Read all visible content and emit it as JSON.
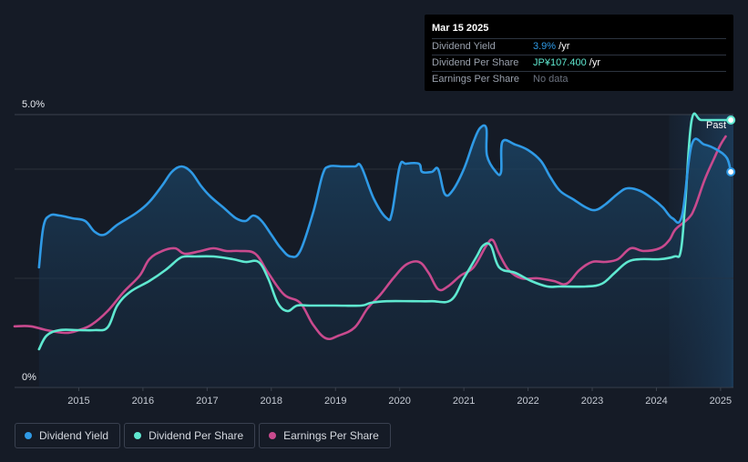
{
  "tooltip": {
    "date": "Mar 15 2025",
    "rows": [
      {
        "label": "Dividend Yield",
        "value": "3.9%",
        "suffix": " /yr"
      },
      {
        "label": "Dividend Per Share",
        "value": "JP¥107.400",
        "suffix": " /yr"
      },
      {
        "label": "Earnings Per Share",
        "value": "No data",
        "suffix": ""
      }
    ]
  },
  "legend": [
    {
      "label": "Dividend Yield",
      "color": "#2f9ae6"
    },
    {
      "label": "Dividend Per Share",
      "color": "#5fe8d0"
    },
    {
      "label": "Earnings Per Share",
      "color": "#c94a8e"
    }
  ],
  "chart_data": {
    "type": "line",
    "y_axis_labels": [
      "5.0%",
      "0%"
    ],
    "ylim": [
      0,
      5.0
    ],
    "x_ticks": [
      "2015",
      "2016",
      "2017",
      "2018",
      "2019",
      "2020",
      "2021",
      "2022",
      "2023",
      "2024",
      "2025"
    ],
    "xlim": [
      2014.0,
      2025.2
    ],
    "grid": true,
    "past_label": "Past",
    "past_region_start": 2024.2,
    "series": [
      {
        "name": "Dividend Yield",
        "color": "#2f9ae6",
        "unit": "%",
        "points": [
          [
            2014.38,
            2.2
          ],
          [
            2014.45,
            2.95
          ],
          [
            2014.55,
            3.15
          ],
          [
            2014.7,
            3.15
          ],
          [
            2014.9,
            3.1
          ],
          [
            2015.1,
            3.05
          ],
          [
            2015.25,
            2.85
          ],
          [
            2015.4,
            2.8
          ],
          [
            2015.6,
            2.98
          ],
          [
            2015.9,
            3.2
          ],
          [
            2016.1,
            3.4
          ],
          [
            2016.3,
            3.7
          ],
          [
            2016.45,
            3.95
          ],
          [
            2016.6,
            4.05
          ],
          [
            2016.75,
            3.95
          ],
          [
            2016.9,
            3.7
          ],
          [
            2017.05,
            3.5
          ],
          [
            2017.25,
            3.3
          ],
          [
            2017.45,
            3.1
          ],
          [
            2017.6,
            3.05
          ],
          [
            2017.72,
            3.15
          ],
          [
            2017.85,
            3.05
          ],
          [
            2018.0,
            2.8
          ],
          [
            2018.15,
            2.55
          ],
          [
            2018.3,
            2.4
          ],
          [
            2018.45,
            2.5
          ],
          [
            2018.65,
            3.2
          ],
          [
            2018.8,
            3.9
          ],
          [
            2018.9,
            4.05
          ],
          [
            2019.1,
            4.05
          ],
          [
            2019.3,
            4.05
          ],
          [
            2019.4,
            4.05
          ],
          [
            2019.6,
            3.45
          ],
          [
            2019.8,
            3.1
          ],
          [
            2019.88,
            3.2
          ],
          [
            2020.0,
            4.05
          ],
          [
            2020.1,
            4.1
          ],
          [
            2020.3,
            4.1
          ],
          [
            2020.35,
            3.95
          ],
          [
            2020.5,
            3.95
          ],
          [
            2020.6,
            4.0
          ],
          [
            2020.7,
            3.55
          ],
          [
            2020.82,
            3.6
          ],
          [
            2021.0,
            4.0
          ],
          [
            2021.15,
            4.5
          ],
          [
            2021.25,
            4.75
          ],
          [
            2021.35,
            4.75
          ],
          [
            2021.36,
            4.25
          ],
          [
            2021.5,
            3.95
          ],
          [
            2021.58,
            3.95
          ],
          [
            2021.6,
            4.5
          ],
          [
            2021.8,
            4.45
          ],
          [
            2022.0,
            4.35
          ],
          [
            2022.2,
            4.15
          ],
          [
            2022.35,
            3.85
          ],
          [
            2022.5,
            3.6
          ],
          [
            2022.7,
            3.45
          ],
          [
            2022.9,
            3.3
          ],
          [
            2023.05,
            3.25
          ],
          [
            2023.2,
            3.35
          ],
          [
            2023.4,
            3.55
          ],
          [
            2023.55,
            3.65
          ],
          [
            2023.75,
            3.6
          ],
          [
            2023.95,
            3.45
          ],
          [
            2024.1,
            3.3
          ],
          [
            2024.25,
            3.1
          ],
          [
            2024.4,
            3.15
          ],
          [
            2024.55,
            4.45
          ],
          [
            2024.75,
            4.45
          ],
          [
            2024.95,
            4.35
          ],
          [
            2025.1,
            4.2
          ],
          [
            2025.16,
            3.95
          ]
        ]
      },
      {
        "name": "Dividend Per Share",
        "color": "#5fe8d0",
        "unit": "JP¥",
        "points": [
          [
            2014.38,
            0.7
          ],
          [
            2014.5,
            0.95
          ],
          [
            2014.7,
            1.05
          ],
          [
            2015.0,
            1.05
          ],
          [
            2015.25,
            1.05
          ],
          [
            2015.45,
            1.1
          ],
          [
            2015.6,
            1.5
          ],
          [
            2015.8,
            1.75
          ],
          [
            2016.1,
            1.95
          ],
          [
            2016.35,
            2.15
          ],
          [
            2016.55,
            2.35
          ],
          [
            2016.65,
            2.4
          ],
          [
            2016.8,
            2.4
          ],
          [
            2017.1,
            2.4
          ],
          [
            2017.4,
            2.35
          ],
          [
            2017.6,
            2.3
          ],
          [
            2017.8,
            2.3
          ],
          [
            2017.95,
            2.0
          ],
          [
            2018.1,
            1.55
          ],
          [
            2018.25,
            1.4
          ],
          [
            2018.4,
            1.5
          ],
          [
            2018.6,
            1.5
          ],
          [
            2019.0,
            1.5
          ],
          [
            2019.4,
            1.5
          ],
          [
            2019.55,
            1.55
          ],
          [
            2019.8,
            1.58
          ],
          [
            2020.2,
            1.58
          ],
          [
            2020.5,
            1.58
          ],
          [
            2020.8,
            1.6
          ],
          [
            2021.0,
            2.0
          ],
          [
            2021.2,
            2.4
          ],
          [
            2021.3,
            2.6
          ],
          [
            2021.42,
            2.6
          ],
          [
            2021.55,
            2.2
          ],
          [
            2021.8,
            2.1
          ],
          [
            2022.05,
            1.95
          ],
          [
            2022.3,
            1.85
          ],
          [
            2022.5,
            1.85
          ],
          [
            2022.9,
            1.85
          ],
          [
            2023.15,
            1.9
          ],
          [
            2023.35,
            2.1
          ],
          [
            2023.55,
            2.3
          ],
          [
            2023.75,
            2.35
          ],
          [
            2024.05,
            2.35
          ],
          [
            2024.28,
            2.4
          ],
          [
            2024.38,
            2.5
          ],
          [
            2024.45,
            3.4
          ],
          [
            2024.55,
            4.9
          ],
          [
            2024.7,
            4.9
          ],
          [
            2025.0,
            4.9
          ],
          [
            2025.16,
            4.9
          ]
        ]
      },
      {
        "name": "Earnings Per Share",
        "color": "#c94a8e",
        "unit": "JP¥",
        "points": [
          [
            2014.0,
            1.12
          ],
          [
            2014.25,
            1.12
          ],
          [
            2014.5,
            1.05
          ],
          [
            2014.8,
            1.0
          ],
          [
            2015.0,
            1.05
          ],
          [
            2015.2,
            1.15
          ],
          [
            2015.45,
            1.4
          ],
          [
            2015.7,
            1.75
          ],
          [
            2015.95,
            2.05
          ],
          [
            2016.1,
            2.35
          ],
          [
            2016.3,
            2.5
          ],
          [
            2016.5,
            2.55
          ],
          [
            2016.65,
            2.45
          ],
          [
            2016.9,
            2.5
          ],
          [
            2017.1,
            2.55
          ],
          [
            2017.3,
            2.5
          ],
          [
            2017.5,
            2.5
          ],
          [
            2017.75,
            2.45
          ],
          [
            2017.95,
            2.1
          ],
          [
            2018.2,
            1.7
          ],
          [
            2018.45,
            1.55
          ],
          [
            2018.65,
            1.15
          ],
          [
            2018.85,
            0.9
          ],
          [
            2019.05,
            0.95
          ],
          [
            2019.3,
            1.1
          ],
          [
            2019.5,
            1.45
          ],
          [
            2019.7,
            1.7
          ],
          [
            2019.9,
            2.0
          ],
          [
            2020.1,
            2.25
          ],
          [
            2020.3,
            2.3
          ],
          [
            2020.45,
            2.1
          ],
          [
            2020.6,
            1.8
          ],
          [
            2020.75,
            1.85
          ],
          [
            2020.95,
            2.05
          ],
          [
            2021.15,
            2.2
          ],
          [
            2021.35,
            2.6
          ],
          [
            2021.45,
            2.7
          ],
          [
            2021.55,
            2.45
          ],
          [
            2021.7,
            2.15
          ],
          [
            2021.9,
            2.0
          ],
          [
            2022.15,
            2.0
          ],
          [
            2022.4,
            1.95
          ],
          [
            2022.6,
            1.9
          ],
          [
            2022.8,
            2.15
          ],
          [
            2023.0,
            2.3
          ],
          [
            2023.2,
            2.3
          ],
          [
            2023.4,
            2.35
          ],
          [
            2023.6,
            2.55
          ],
          [
            2023.8,
            2.5
          ],
          [
            2024.05,
            2.55
          ],
          [
            2024.2,
            2.7
          ],
          [
            2024.3,
            2.9
          ],
          [
            2024.5,
            3.1
          ],
          [
            2024.6,
            3.3
          ],
          [
            2024.75,
            3.8
          ],
          [
            2024.9,
            4.2
          ],
          [
            2025.0,
            4.45
          ],
          [
            2025.08,
            4.6
          ]
        ]
      }
    ]
  }
}
